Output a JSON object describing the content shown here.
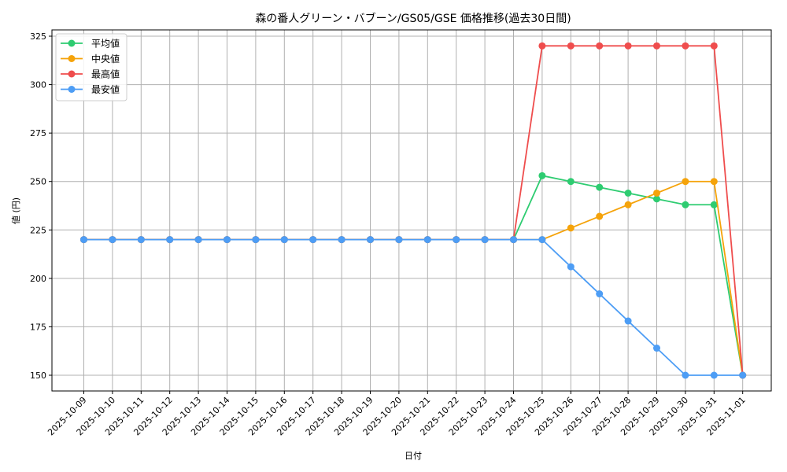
{
  "chart_data": {
    "type": "line",
    "title": "森の番人グリーン・バブーン/GS05/GSE 価格推移(過去30日間)",
    "xlabel": "日付",
    "ylabel": "値 (円)",
    "ylim": [
      142,
      327
    ],
    "yticks": [
      150,
      175,
      200,
      225,
      250,
      275,
      300,
      325
    ],
    "grid": true,
    "legend_position": "upper left",
    "x": [
      "2025-10-09",
      "2025-10-10",
      "2025-10-11",
      "2025-10-12",
      "2025-10-13",
      "2025-10-14",
      "2025-10-15",
      "2025-10-16",
      "2025-10-17",
      "2025-10-18",
      "2025-10-19",
      "2025-10-20",
      "2025-10-21",
      "2025-10-22",
      "2025-10-23",
      "2025-10-24",
      "2025-10-25",
      "2025-10-26",
      "2025-10-27",
      "2025-10-28",
      "2025-10-29",
      "2025-10-30",
      "2025-10-31",
      "2025-11-01"
    ],
    "series": [
      {
        "name": "平均値",
        "color": "#2ecc71",
        "values": [
          220,
          220,
          220,
          220,
          220,
          220,
          220,
          220,
          220,
          220,
          220,
          220,
          220,
          220,
          220,
          220,
          253,
          250,
          247,
          244,
          241,
          238,
          238,
          150
        ]
      },
      {
        "name": "中央値",
        "color": "#f5a30a",
        "values": [
          220,
          220,
          220,
          220,
          220,
          220,
          220,
          220,
          220,
          220,
          220,
          220,
          220,
          220,
          220,
          220,
          220,
          226,
          232,
          238,
          244,
          250,
          250,
          150
        ]
      },
      {
        "name": "最高値",
        "color": "#ef4d4d",
        "values": [
          220,
          220,
          220,
          220,
          220,
          220,
          220,
          220,
          220,
          220,
          220,
          220,
          220,
          220,
          220,
          220,
          320,
          320,
          320,
          320,
          320,
          320,
          320,
          150
        ]
      },
      {
        "name": "最安値",
        "color": "#4d9df5",
        "values": [
          220,
          220,
          220,
          220,
          220,
          220,
          220,
          220,
          220,
          220,
          220,
          220,
          220,
          220,
          220,
          220,
          220,
          206,
          192,
          178,
          164,
          150,
          150,
          150
        ]
      }
    ]
  }
}
